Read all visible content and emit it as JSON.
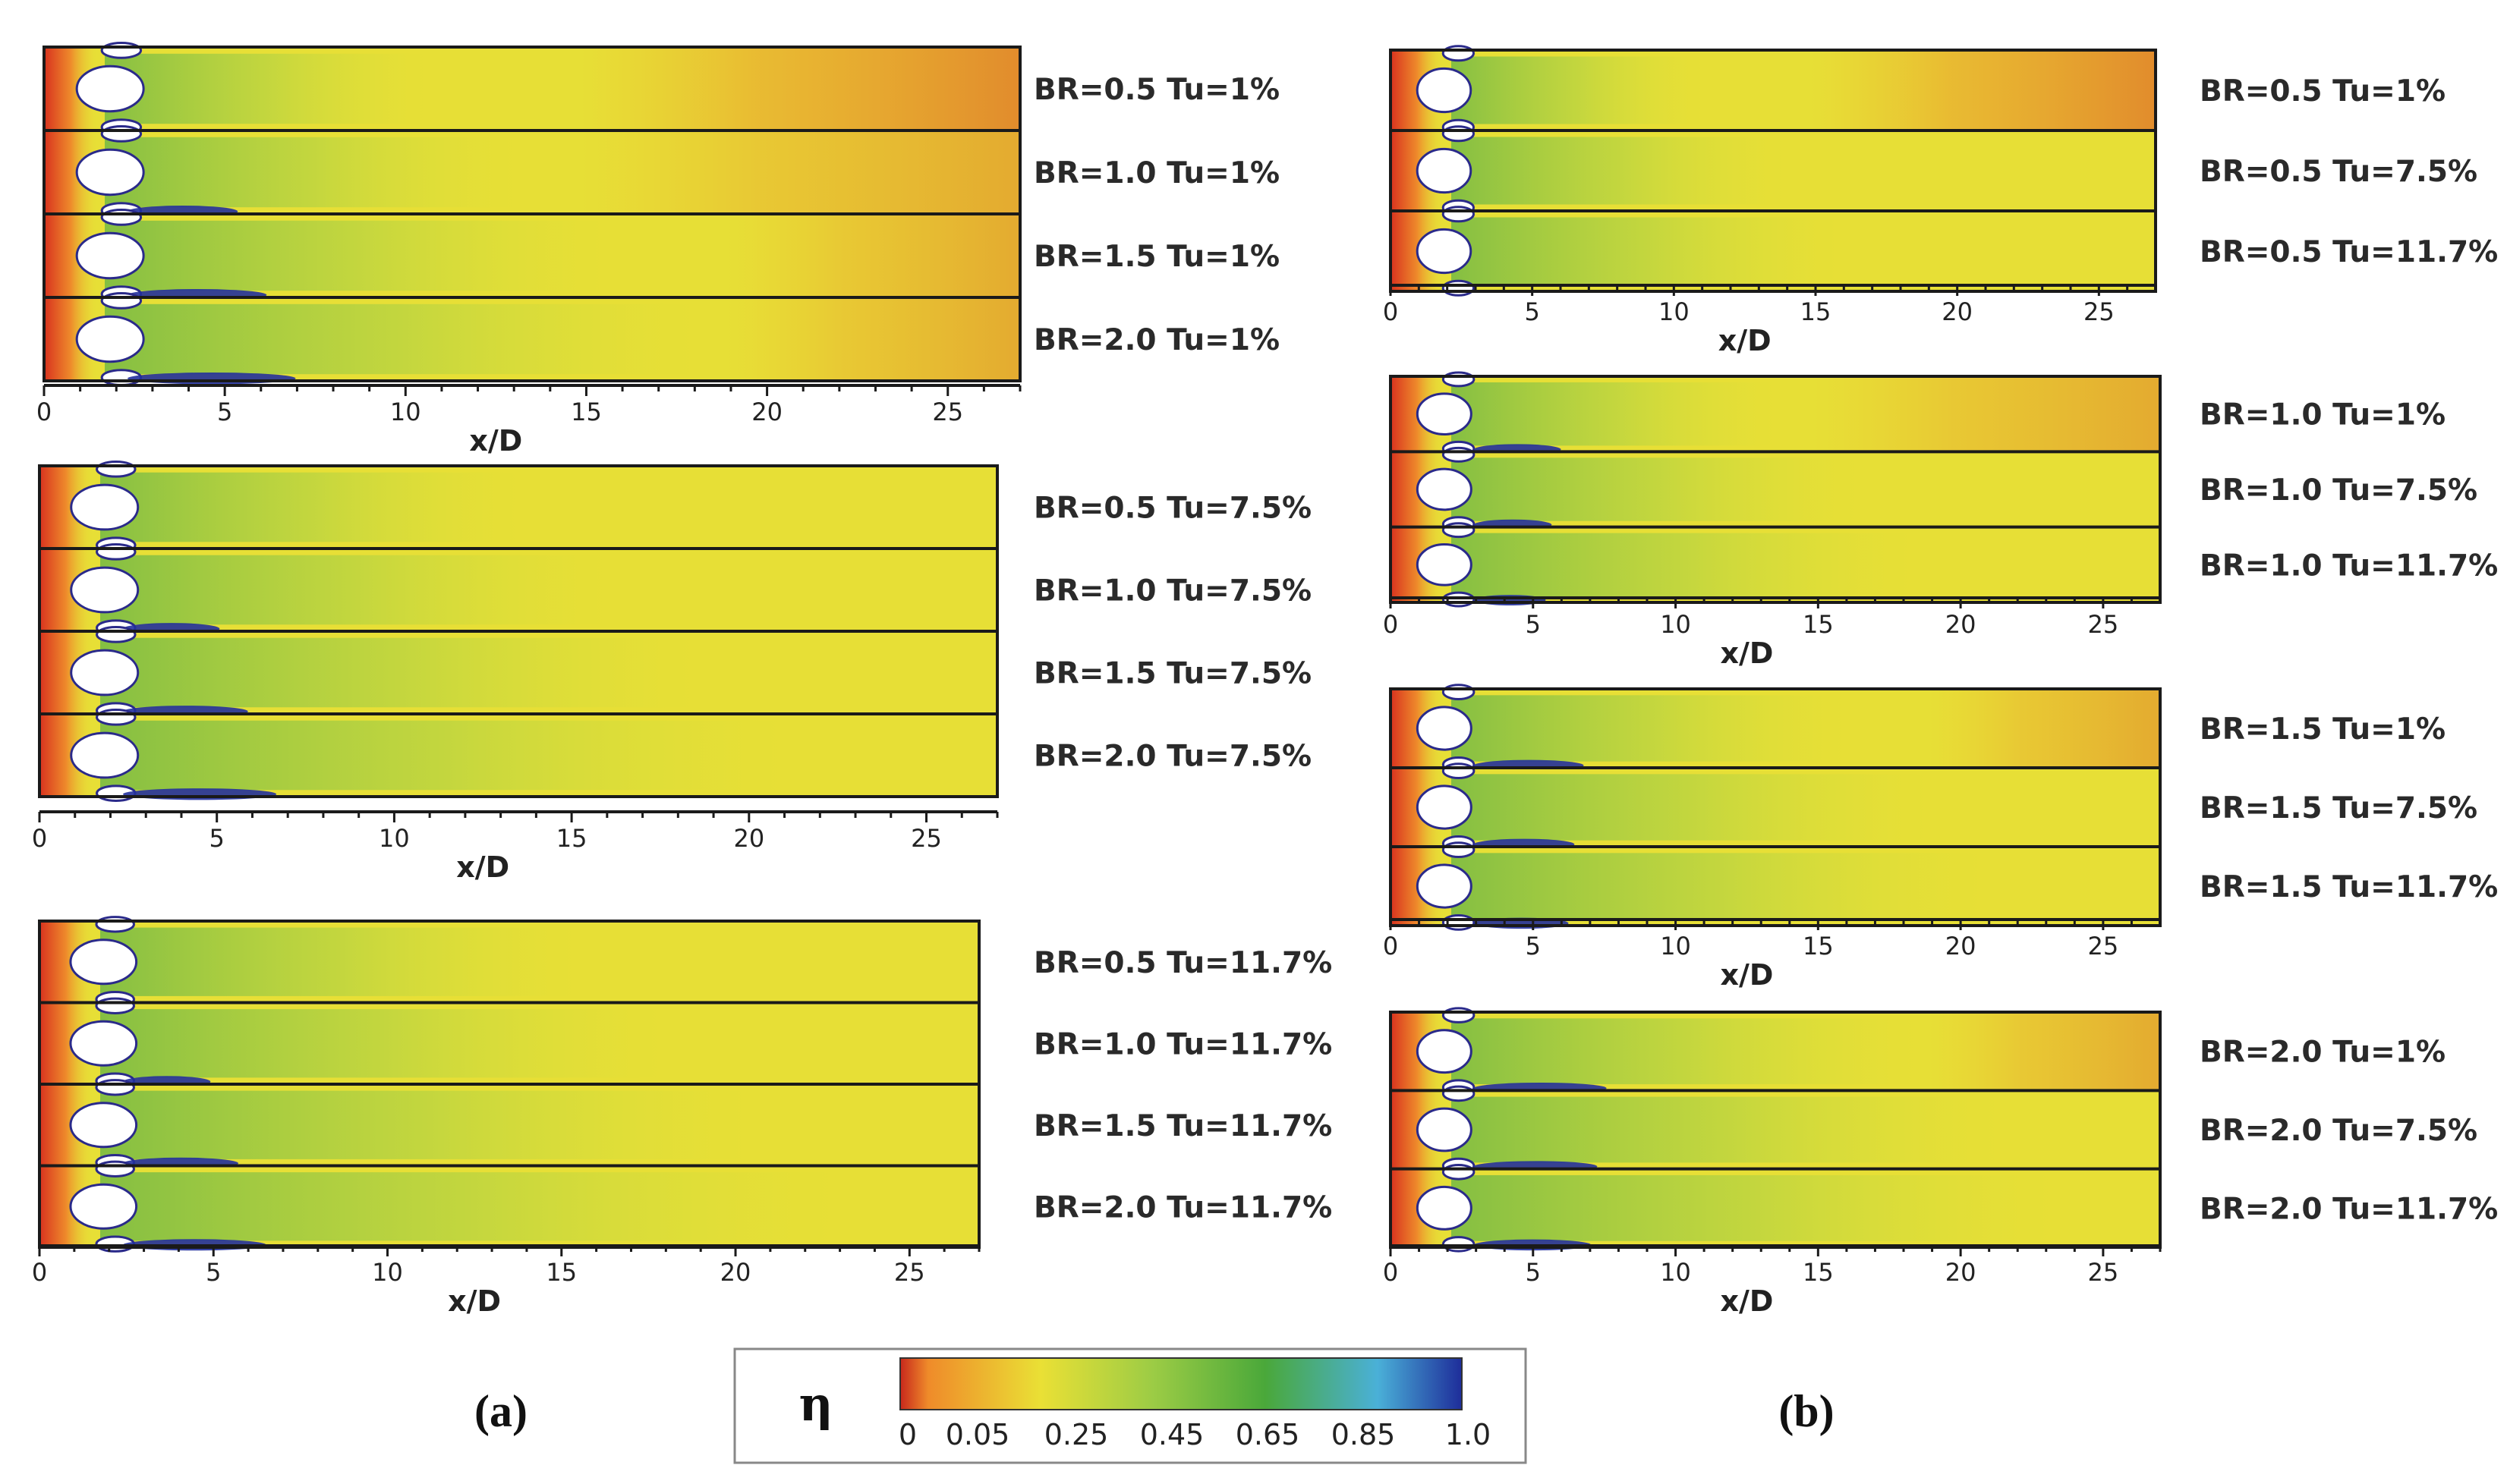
{
  "chart_data": {
    "type": "heatmap",
    "variable": "η",
    "xlabel": "x/D",
    "x_ticks": [
      "0",
      "5",
      "10",
      "15",
      "20",
      "25"
    ],
    "xlim": [
      0,
      27
    ],
    "colorbar": {
      "title": "η",
      "range": [
        0,
        1.0
      ],
      "tick_labels": [
        "0",
        "0.05",
        "0.25",
        "0.45",
        "0.65",
        "0.85",
        "1.0"
      ],
      "tick_values": [
        0,
        0.05,
        0.25,
        0.45,
        0.65,
        0.85,
        1.0
      ],
      "colors": [
        "#c8281c",
        "#ef8b2a",
        "#eae035",
        "#9ccc45",
        "#4aa83a",
        "#4ab0d8",
        "#1e2d9a"
      ]
    },
    "panels": [
      {
        "label": "(a)",
        "groups": [
          {
            "strips": [
              {
                "text": "BR=0.5 Tu=1%",
                "br": 0.5,
                "tu": 1
              },
              {
                "text": "BR=1.0 Tu=1%",
                "br": 1.0,
                "tu": 1
              },
              {
                "text": "BR=1.5 Tu=1%",
                "br": 1.5,
                "tu": 1
              },
              {
                "text": "BR=2.0 Tu=1%",
                "br": 2.0,
                "tu": 1
              }
            ]
          },
          {
            "strips": [
              {
                "text": "BR=0.5 Tu=7.5%",
                "br": 0.5,
                "tu": 7.5
              },
              {
                "text": "BR=1.0 Tu=7.5%",
                "br": 1.0,
                "tu": 7.5
              },
              {
                "text": "BR=1.5 Tu=7.5%",
                "br": 1.5,
                "tu": 7.5
              },
              {
                "text": "BR=2.0 Tu=7.5%",
                "br": 2.0,
                "tu": 7.5
              }
            ]
          },
          {
            "strips": [
              {
                "text": "BR=0.5 Tu=11.7%",
                "br": 0.5,
                "tu": 11.7
              },
              {
                "text": "BR=1.0 Tu=11.7%",
                "br": 1.0,
                "tu": 11.7
              },
              {
                "text": "BR=1.5 Tu=11.7%",
                "br": 1.5,
                "tu": 11.7
              },
              {
                "text": "BR=2.0 Tu=11.7%",
                "br": 2.0,
                "tu": 11.7
              }
            ]
          }
        ]
      },
      {
        "label": "(b)",
        "groups": [
          {
            "strips": [
              {
                "text": "BR=0.5 Tu=1%",
                "br": 0.5,
                "tu": 1
              },
              {
                "text": "BR=0.5 Tu=7.5%",
                "br": 0.5,
                "tu": 7.5
              },
              {
                "text": "BR=0.5 Tu=11.7%",
                "br": 0.5,
                "tu": 11.7
              }
            ]
          },
          {
            "strips": [
              {
                "text": "BR=1.0 Tu=1%",
                "br": 1.0,
                "tu": 1
              },
              {
                "text": "BR=1.0 Tu=7.5%",
                "br": 1.0,
                "tu": 7.5
              },
              {
                "text": "BR=1.0 Tu=11.7%",
                "br": 1.0,
                "tu": 11.7
              }
            ]
          },
          {
            "strips": [
              {
                "text": "BR=1.5 Tu=1%",
                "br": 1.5,
                "tu": 1
              },
              {
                "text": "BR=1.5 Tu=7.5%",
                "br": 1.5,
                "tu": 7.5
              },
              {
                "text": "BR=1.5 Tu=11.7%",
                "br": 1.5,
                "tu": 11.7
              }
            ]
          },
          {
            "strips": [
              {
                "text": "BR=2.0 Tu=1%",
                "br": 2.0,
                "tu": 1
              },
              {
                "text": "BR=2.0 Tu=7.5%",
                "br": 2.0,
                "tu": 7.5
              },
              {
                "text": "BR=2.0 Tu=11.7%",
                "br": 2.0,
                "tu": 11.7
              }
            ]
          }
        ]
      }
    ]
  }
}
